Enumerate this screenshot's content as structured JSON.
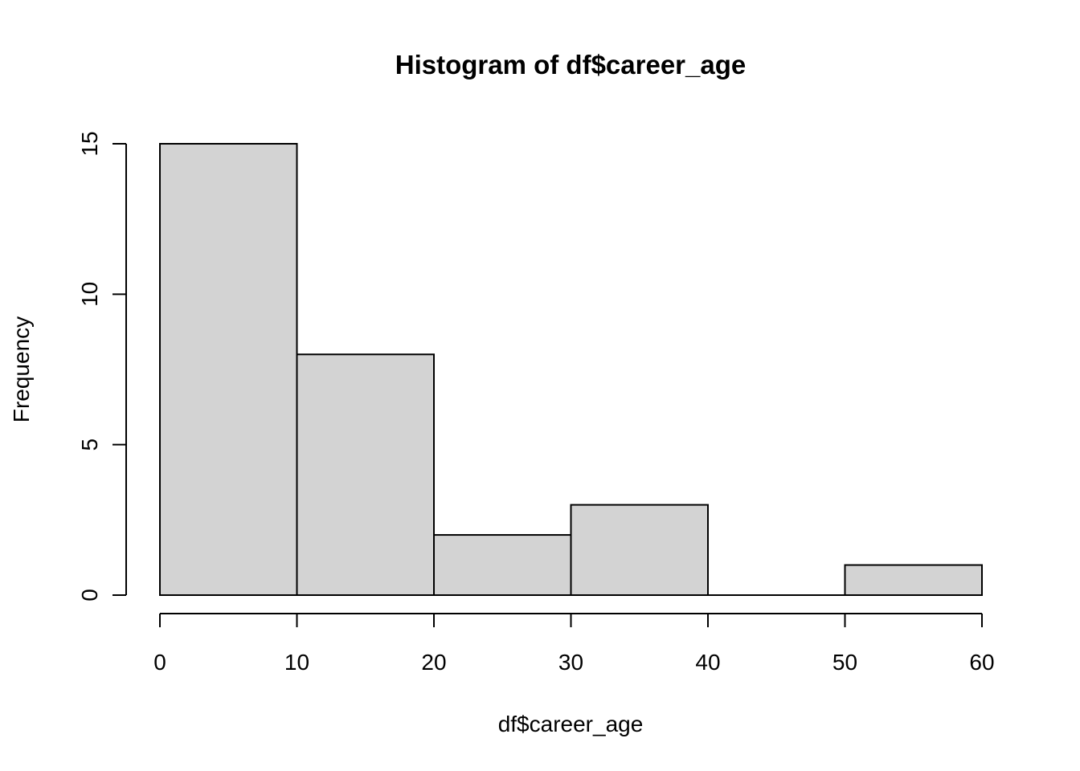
{
  "chart_data": {
    "type": "bar",
    "subtype": "histogram",
    "title": "Histogram of df$career_age",
    "xlabel": "df$career_age",
    "ylabel": "Frequency",
    "bins": [
      {
        "start": 0,
        "end": 10,
        "count": 15
      },
      {
        "start": 10,
        "end": 20,
        "count": 8
      },
      {
        "start": 20,
        "end": 30,
        "count": 2
      },
      {
        "start": 30,
        "end": 40,
        "count": 3
      },
      {
        "start": 40,
        "end": 50,
        "count": 0
      },
      {
        "start": 50,
        "end": 60,
        "count": 1
      }
    ],
    "xlim": [
      0,
      60
    ],
    "ylim": [
      0,
      15
    ],
    "x_ticks": [
      "0",
      "10",
      "20",
      "30",
      "40",
      "50",
      "60"
    ],
    "y_ticks": [
      "0",
      "5",
      "10",
      "15"
    ],
    "grid": false,
    "bar_color": "#d3d3d3",
    "edge_color": "#000000"
  }
}
